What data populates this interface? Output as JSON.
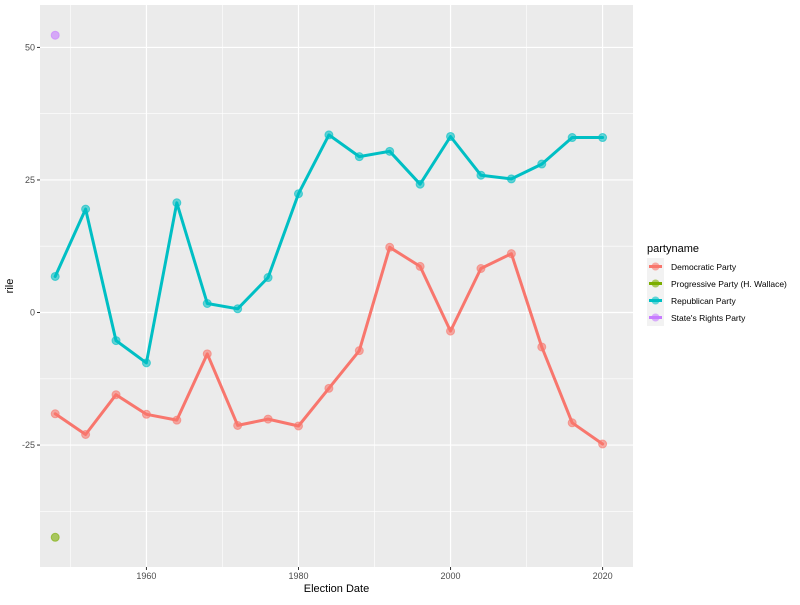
{
  "chart_data": {
    "type": "line",
    "title": "",
    "xlabel": "Election Date",
    "ylabel": "rile",
    "xlim": [
      1946,
      2024
    ],
    "ylim": [
      -48,
      58
    ],
    "x_ticks": [
      1960,
      1980,
      2000,
      2020
    ],
    "x_tick_labels": [
      "1960",
      "1980",
      "2000",
      "2020"
    ],
    "y_ticks": [
      -25,
      0,
      25,
      50
    ],
    "y_tick_labels": [
      "-25",
      "0",
      "25",
      "50"
    ],
    "grid": true,
    "legend": {
      "title": "partyname",
      "placement": "right",
      "entries": [
        "Democratic Party",
        "Progressive Party (H. Wallace)",
        "Republican Party",
        "State's Rights Party"
      ]
    },
    "series": [
      {
        "name": "Democratic Party",
        "color": "#F8766D",
        "x": [
          1948,
          1952,
          1956,
          1960,
          1964,
          1968,
          1972,
          1976,
          1980,
          1984,
          1988,
          1992,
          1996,
          2000,
          2004,
          2008,
          2012,
          2016,
          2020
        ],
        "y": [
          -19.1,
          -23.0,
          -15.5,
          -19.2,
          -20.3,
          -7.8,
          -21.3,
          -20.1,
          -21.4,
          -14.3,
          -7.2,
          12.3,
          8.7,
          -3.5,
          8.3,
          11.1,
          -6.5,
          -20.8,
          -24.8
        ]
      },
      {
        "name": "Progressive Party (H. Wallace)",
        "color": "#7CAE00",
        "x": [
          1948
        ],
        "y": [
          -42.4
        ]
      },
      {
        "name": "Republican Party",
        "color": "#00BFC4",
        "x": [
          1948,
          1952,
          1956,
          1960,
          1964,
          1968,
          1972,
          1976,
          1980,
          1984,
          1988,
          1992,
          1996,
          2000,
          2004,
          2008,
          2012,
          2016,
          2020
        ],
        "y": [
          6.8,
          19.5,
          -5.3,
          -9.5,
          20.7,
          1.7,
          0.7,
          6.6,
          22.4,
          33.5,
          29.4,
          30.4,
          24.2,
          33.2,
          25.9,
          25.2,
          28.0,
          33.0,
          33.0
        ]
      },
      {
        "name": "State's Rights Party",
        "color": "#C77CFF",
        "x": [
          1948
        ],
        "y": [
          52.3
        ]
      }
    ]
  }
}
